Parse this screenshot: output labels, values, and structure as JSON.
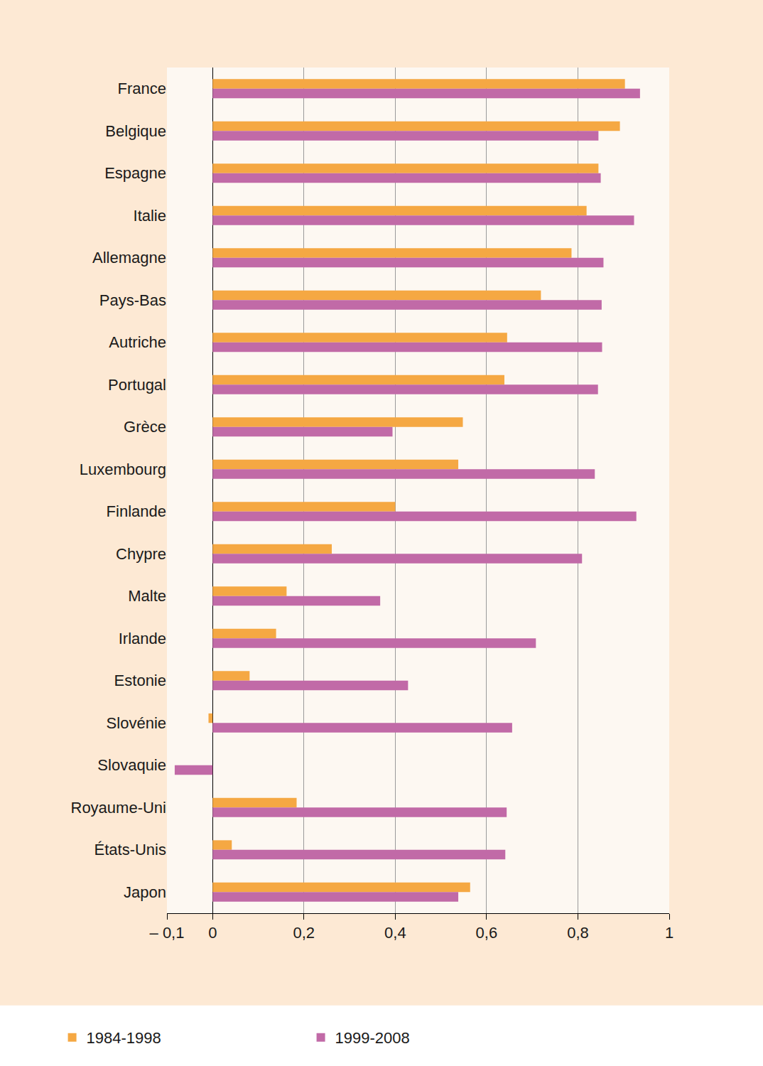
{
  "chart_data": {
    "type": "bar",
    "orientation": "horizontal",
    "categories": [
      "France",
      "Belgique",
      "Espagne",
      "Italie",
      "Allemagne",
      "Pays-Bas",
      "Autriche",
      "Portugal",
      "Grèce",
      "Luxembourg",
      "Finlande",
      "Chypre",
      "Malte",
      "Irlande",
      "Estonie",
      "Slovénie",
      "Slovaquie",
      "Royaume-Uni",
      "États-Unis",
      "Japon"
    ],
    "series": [
      {
        "name": "1984-1998",
        "color": "#f5a843",
        "values": [
          0.903,
          0.892,
          0.845,
          0.819,
          0.786,
          0.719,
          0.645,
          0.639,
          0.548,
          0.538,
          0.4,
          0.261,
          0.162,
          0.139,
          0.081,
          -0.009,
          null,
          0.184,
          0.042,
          0.564
        ]
      },
      {
        "name": "1999-2008",
        "color": "#c16aa7",
        "values": [
          0.936,
          0.845,
          0.85,
          0.923,
          0.856,
          0.852,
          0.853,
          0.844,
          0.394,
          0.837,
          0.928,
          0.809,
          0.367,
          0.708,
          0.428,
          0.656,
          -0.083,
          0.644,
          0.641,
          0.538
        ]
      }
    ],
    "xlim": [
      -0.1,
      1
    ],
    "xticks": [
      {
        "value": -0.1,
        "label": "– 0,1"
      },
      0,
      {
        "value": 0.2,
        "label": "0,2"
      },
      {
        "value": 0.4,
        "label": "0,4"
      },
      {
        "value": 0.6,
        "label": "0,6"
      },
      {
        "value": 0.8,
        "label": "0,8"
      },
      1
    ],
    "grid": true,
    "legend": "bottom"
  }
}
